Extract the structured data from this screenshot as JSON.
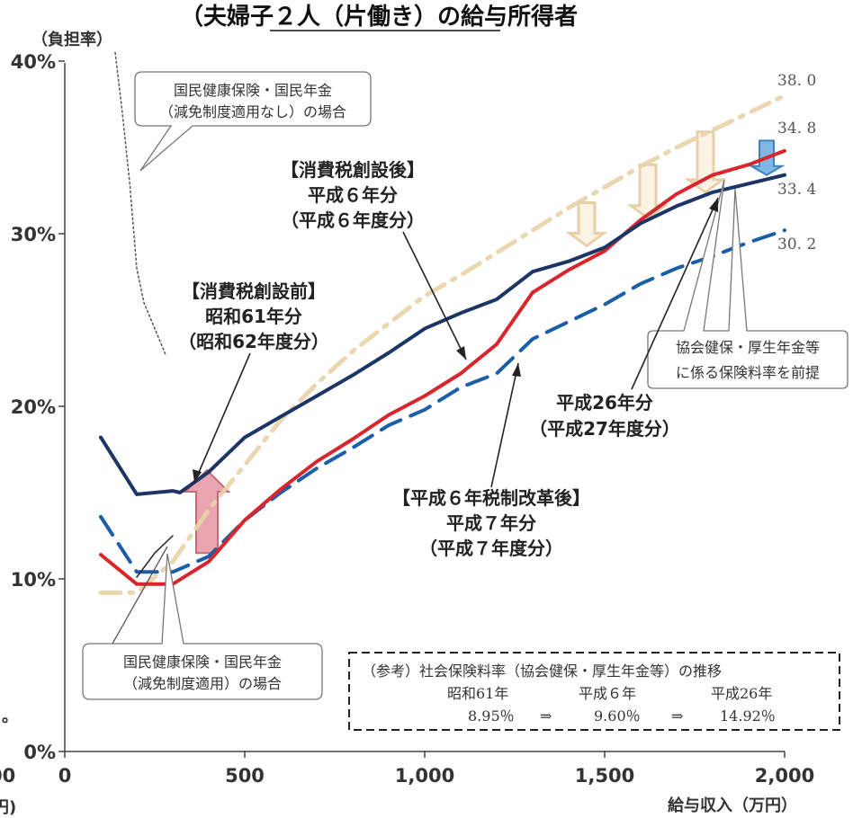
{
  "colors": {
    "s1986": "#1c3566",
    "s1994": "#d8262c",
    "s1995": "#1a5ea8",
    "s2014": "#e8d3a8",
    "arrow_up": "#eaa4b0",
    "arrow_down": "#7fb6e2"
  },
  "chart_data": {
    "type": "line",
    "title": "（夫婦子２人（片働き）の給与所得者",
    "xlabel": "給与収入（万円）",
    "ylabel": "（負担率）",
    "xlim": [
      0,
      2000
    ],
    "ylim": [
      0,
      40
    ],
    "x_ticks": [
      {
        "value": 0,
        "label": "0"
      },
      {
        "value": 500,
        "label": "500"
      },
      {
        "value": 1000,
        "label": "1,000"
      },
      {
        "value": 1500,
        "label": "1,500"
      },
      {
        "value": 2000,
        "label": "2,000"
      }
    ],
    "y_ticks": [
      {
        "value": 0,
        "label": "0%"
      },
      {
        "value": 10,
        "label": "10%"
      },
      {
        "value": 20,
        "label": "20%"
      },
      {
        "value": 30,
        "label": "30%"
      },
      {
        "value": 40,
        "label": "40%"
      }
    ],
    "series": [
      {
        "key": "s1986",
        "style": "solid",
        "x": [
          100,
          200,
          300,
          320,
          400,
          500,
          600,
          700,
          800,
          900,
          1000,
          1100,
          1200,
          1300,
          1400,
          1500,
          1600,
          1700,
          1800,
          1900,
          2000
        ],
        "y": [
          18.2,
          14.9,
          15.1,
          15.0,
          16.2,
          18.2,
          19.4,
          20.6,
          21.8,
          23.1,
          24.5,
          25.4,
          26.2,
          27.8,
          28.4,
          29.2,
          30.6,
          31.6,
          32.4,
          32.9,
          33.4
        ]
      },
      {
        "key": "s1994",
        "style": "solid",
        "x": [
          100,
          200,
          300,
          400,
          500,
          600,
          700,
          800,
          900,
          1000,
          1100,
          1200,
          1300,
          1400,
          1500,
          1600,
          1700,
          1800,
          1900,
          2000
        ],
        "y": [
          11.4,
          9.7,
          9.7,
          11.0,
          13.4,
          15.2,
          16.8,
          18.1,
          19.5,
          20.6,
          21.9,
          23.6,
          26.6,
          27.9,
          29.0,
          30.8,
          32.3,
          33.4,
          34.0,
          34.8
        ]
      },
      {
        "key": "s1995",
        "style": "dashed",
        "x": [
          100,
          200,
          300,
          400,
          500,
          600,
          700,
          800,
          900,
          1000,
          1100,
          1200,
          1300,
          1400,
          1500,
          1600,
          1700,
          1800,
          1900,
          2000
        ],
        "y": [
          13.6,
          10.4,
          10.4,
          11.3,
          13.4,
          15.0,
          16.4,
          17.6,
          18.9,
          19.8,
          21.1,
          21.9,
          23.9,
          24.9,
          25.9,
          27.1,
          28.0,
          28.7,
          29.5,
          30.2
        ]
      },
      {
        "key": "s2014",
        "style": "dashdot",
        "x": [
          100,
          200,
          300,
          400,
          500,
          600,
          700,
          800,
          900,
          1000,
          1100,
          1200,
          1300,
          1400,
          1500,
          1600,
          1700,
          1800,
          1900,
          2000
        ],
        "y": [
          9.2,
          9.2,
          11.0,
          14.0,
          16.6,
          19.2,
          21.3,
          23.2,
          24.8,
          26.4,
          27.6,
          28.9,
          30.2,
          31.5,
          32.7,
          33.9,
          35.0,
          36.0,
          37.0,
          38.0
        ]
      },
      {
        "key": "s_nokg",
        "style": "dotted",
        "x": [
          140,
          160,
          180,
          200,
          220,
          250,
          280
        ],
        "y": [
          40.5,
          37.0,
          33.0,
          28.0,
          26.0,
          24.5,
          23.0
        ]
      },
      {
        "key": "s_kg",
        "style": "solid_thin",
        "x": [
          200,
          250,
          300
        ],
        "y": [
          10.1,
          11.5,
          12.5
        ]
      }
    ],
    "end_labels": [
      {
        "value": 38.0,
        "text": "38. 0"
      },
      {
        "value": 34.8,
        "text": "34. 8"
      },
      {
        "value": 33.4,
        "text": "33. 4"
      },
      {
        "value": 30.2,
        "text": "30. 2"
      }
    ],
    "annotations": {
      "nokg": [
        "国民健康保険・国民年金",
        "（減免制度適用なし）の場合"
      ],
      "kg": [
        "国民健康保険・国民年金",
        "（減免制度適用）の場合"
      ],
      "after_ct": [
        "【消費税創設後】",
        "平成６年分",
        "（平成６年度分）"
      ],
      "before_ct": [
        "【消費税創設前】",
        "昭和61年分",
        "（昭和62年度分）"
      ],
      "h26": [
        "平成26年分",
        "（平成27年度分）"
      ],
      "h6reform": [
        "【平成６年税制改革後】",
        "平成７年分",
        "（平成７年度分）"
      ],
      "kyokai": [
        "協会健保・厚生年金等",
        "に係る保険料率を前提"
      ]
    },
    "reference_box": {
      "title": "（参考）社会保険料率（協会健保・厚生年金等）の推移",
      "years": [
        "昭和61年",
        "平成６年",
        "平成26年"
      ],
      "values": [
        "8.95％",
        "9.60％",
        "14.92％"
      ],
      "arrow": "⇒"
    },
    "edge_labels": {
      "left_bottom_0": "00",
      "left_bottom_unit": "円)",
      "left_dot": "。"
    }
  }
}
